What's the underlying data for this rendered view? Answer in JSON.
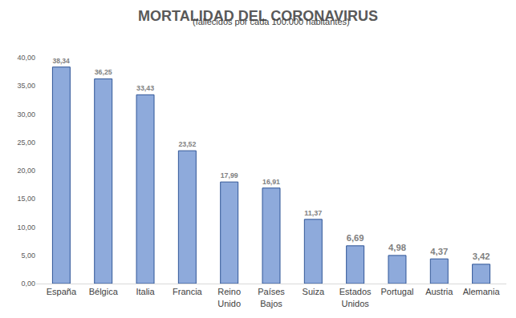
{
  "chart_data": {
    "type": "bar",
    "title": "MORTALIDAD DEL CORONAVIRUS",
    "subtitle": "(fallecidos por cada 100.000 habitantes)",
    "categories": [
      "España",
      "Bélgica",
      "Italia",
      "Francia",
      "Reino Unido",
      "Países Bajos",
      "Suiza",
      "Estados Unidos",
      "Portugal",
      "Austria",
      "Alemania"
    ],
    "values": [
      38.34,
      36.25,
      33.43,
      23.52,
      17.99,
      16.91,
      11.37,
      6.69,
      4.98,
      4.37,
      3.42
    ],
    "value_labels": [
      "38,34",
      "36,25",
      "33,43",
      "23,52",
      "17,99",
      "16,91",
      "11,37",
      "6,69",
      "4,98",
      "4,37",
      "3,42"
    ],
    "data_labels": true,
    "color": "#8eaadb",
    "ylim": [
      0,
      40
    ],
    "yticks": [
      {
        "value": 0,
        "label": "0,00"
      },
      {
        "value": 5,
        "label": "5,00"
      },
      {
        "value": 10,
        "label": "10,00"
      },
      {
        "value": 15,
        "label": "15,00"
      },
      {
        "value": 20,
        "label": "20,00"
      },
      {
        "value": 25,
        "label": "25,00"
      },
      {
        "value": 30,
        "label": "30,00"
      },
      {
        "value": 35,
        "label": "35,00"
      },
      {
        "value": 40,
        "label": "40,00"
      }
    ],
    "grid": false
  }
}
